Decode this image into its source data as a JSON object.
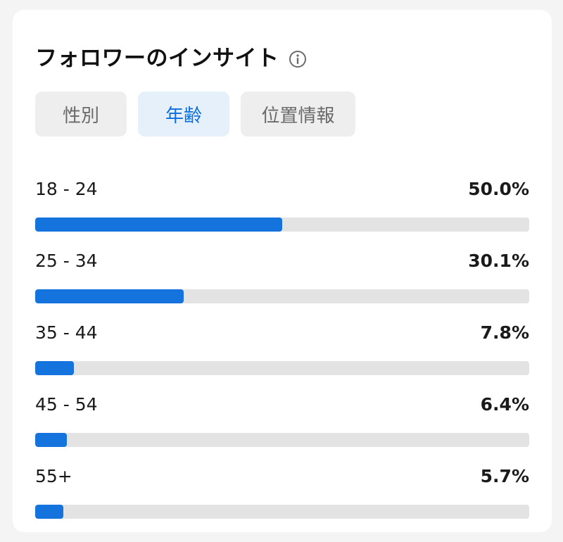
{
  "header": {
    "title": "フォロワーのインサイト",
    "info_icon": "info-icon"
  },
  "tabs": [
    {
      "label": "性別",
      "active": false
    },
    {
      "label": "年齢",
      "active": true
    },
    {
      "label": "位置情報",
      "active": false
    }
  ],
  "age_rows": [
    {
      "label": "18 - 24",
      "percent_text": "50.0%",
      "value": 50.0
    },
    {
      "label": "25 - 34",
      "percent_text": "30.1%",
      "value": 30.1
    },
    {
      "label": "35 - 44",
      "percent_text": "7.8%",
      "value": 7.8
    },
    {
      "label": "45 - 54",
      "percent_text": "6.4%",
      "value": 6.4
    },
    {
      "label": "55+",
      "percent_text": "5.7%",
      "value": 5.7
    }
  ],
  "colors": {
    "accent": "#1473dc",
    "active_tab_bg": "#e5f0fb",
    "active_tab_text": "#0b6ddb",
    "track": "#e3e3e3"
  }
}
